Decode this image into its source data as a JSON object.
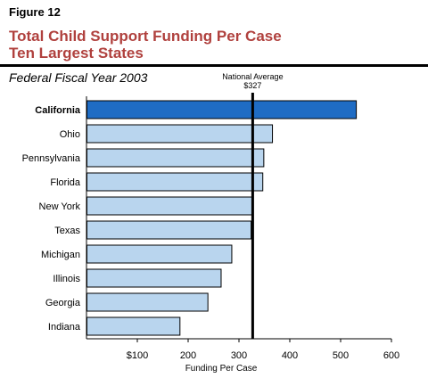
{
  "header": {
    "figure_label": "Figure 12",
    "title_line1": "Total Child Support Funding Per Case",
    "title_line2": "Ten Largest States",
    "subtitle": "Federal Fiscal Year 2003"
  },
  "colors": {
    "title": "#b0413e",
    "bar": "#b9d5ee",
    "highlight_bar": "#1f6cc4",
    "bar_stroke": "#000000",
    "reference_line": "#000000"
  },
  "chart_data": {
    "type": "bar",
    "orientation": "horizontal",
    "title": "Total Child Support Funding Per Case",
    "subtitle": "Ten Largest States",
    "xlabel": "Funding Per Case",
    "ylabel": "",
    "xlim": [
      0,
      600
    ],
    "xticks": [
      100,
      200,
      300,
      400,
      500,
      600
    ],
    "xtick_labels": [
      "$100",
      "200",
      "300",
      "400",
      "500",
      "600"
    ],
    "grid": false,
    "categories": [
      "California",
      "Ohio",
      "Pennsylvania",
      "Florida",
      "New York",
      "Texas",
      "Michigan",
      "Illinois",
      "Georgia",
      "Indiana"
    ],
    "values": [
      530,
      365,
      348,
      346,
      325,
      323,
      285,
      264,
      238,
      183
    ],
    "highlight": "California",
    "reference_line": {
      "value": 327,
      "label_line1": "National Average",
      "label_line2": "$327"
    }
  }
}
